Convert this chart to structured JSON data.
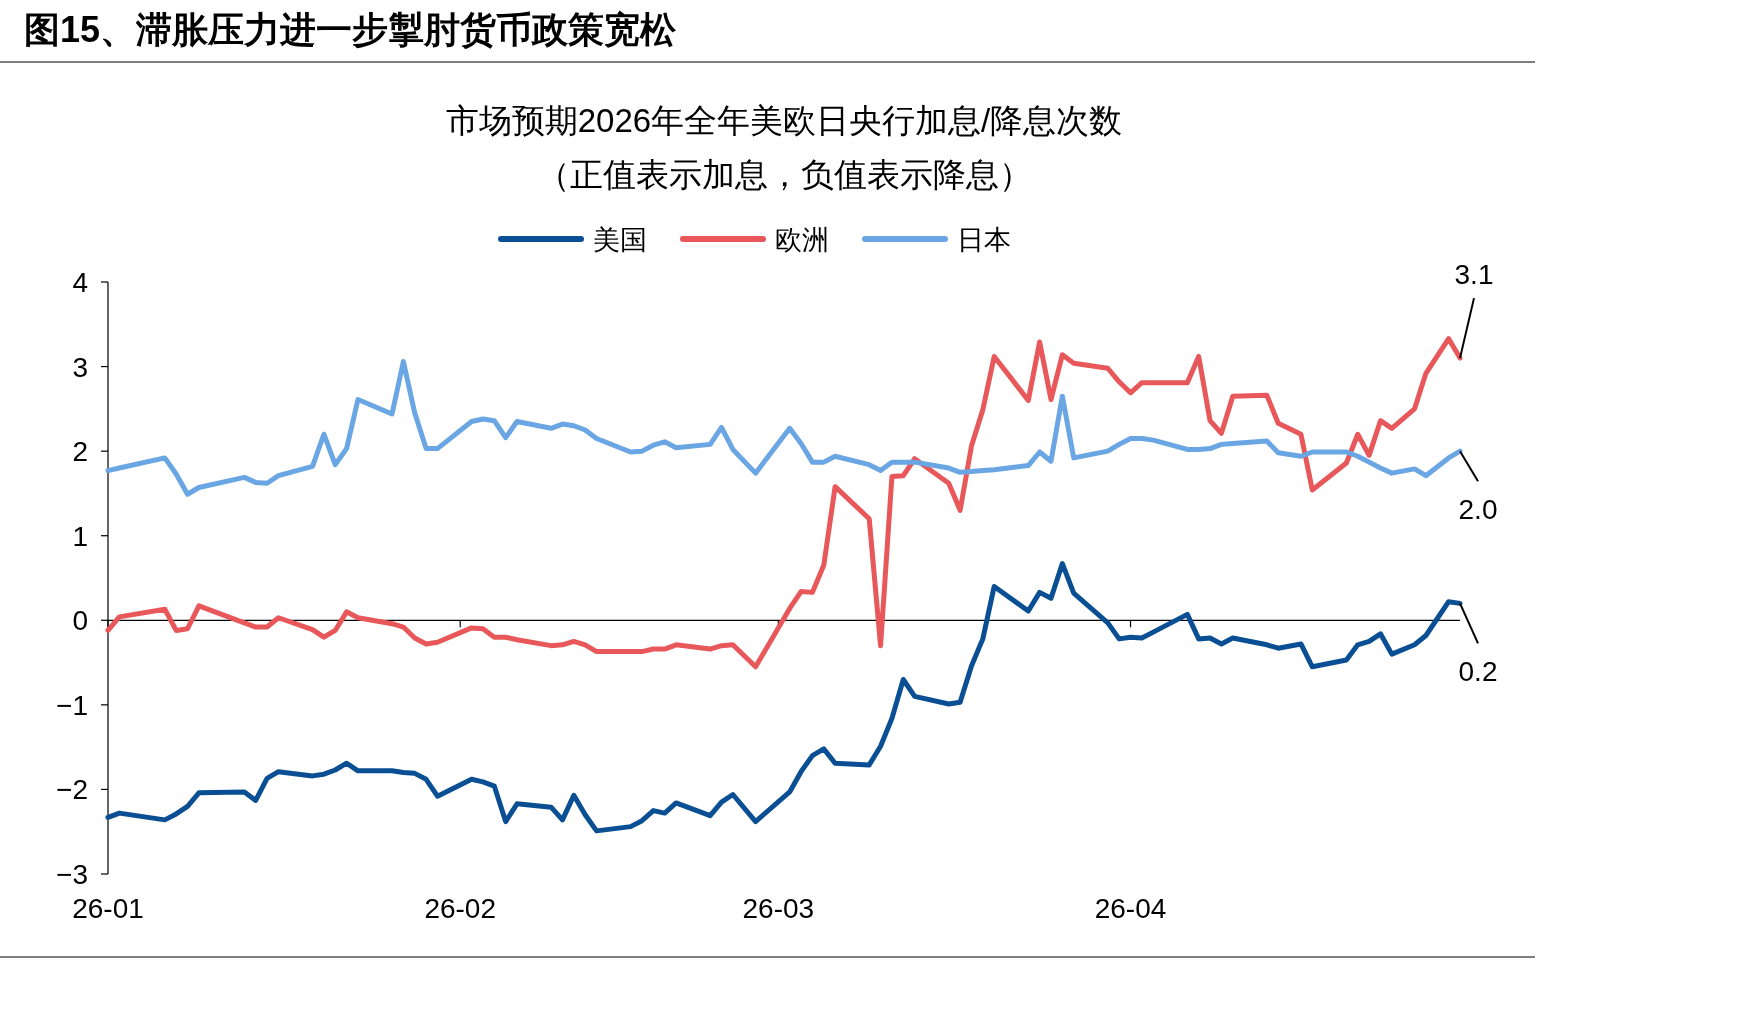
{
  "chart_data": {
    "type": "line",
    "title": "图15、滞胀压力进一步掣肘货币政策宽松",
    "subtitle": "市场预期2026年全年美欧日央行加息/降息次数",
    "annotations": [
      "（正值表示加息，负值表示降息）",
      {
        "text": "3.1",
        "x": "2026-04-30",
        "y": 3.1
      },
      {
        "text": "2.0",
        "x": "2026-04-30",
        "y": 2.0
      },
      {
        "text": "0.2",
        "x": "2026-04-30",
        "y": 0.2
      }
    ],
    "x": [
      "2026-01-01",
      "2026-01-02",
      "2026-01-06",
      "2026-01-07",
      "2026-01-08",
      "2026-01-09",
      "2026-01-13",
      "2026-01-14",
      "2026-01-15",
      "2026-01-16",
      "2026-01-19",
      "2026-01-20",
      "2026-01-21",
      "2026-01-22",
      "2026-01-23",
      "2026-01-26",
      "2026-01-27",
      "2026-01-28",
      "2026-01-29",
      "2026-01-30",
      "2026-02-02",
      "2026-02-03",
      "2026-02-04",
      "2026-02-05",
      "2026-02-06",
      "2026-02-09",
      "2026-02-10",
      "2026-02-11",
      "2026-02-12",
      "2026-02-13",
      "2026-02-16",
      "2026-02-17",
      "2026-02-18",
      "2026-02-19",
      "2026-02-20",
      "2026-02-23",
      "2026-02-24",
      "2026-02-25",
      "2026-02-27",
      "2026-03-02",
      "2026-03-03",
      "2026-03-04",
      "2026-03-05",
      "2026-03-06",
      "2026-03-09",
      "2026-03-10",
      "2026-03-11",
      "2026-03-12",
      "2026-03-13",
      "2026-03-16",
      "2026-03-17",
      "2026-03-18",
      "2026-03-19",
      "2026-03-20",
      "2026-03-23",
      "2026-03-24",
      "2026-03-25",
      "2026-03-26",
      "2026-03-27",
      "2026-03-30",
      "2026-03-31",
      "2026-04-01",
      "2026-04-02",
      "2026-04-03",
      "2026-04-06",
      "2026-04-07",
      "2026-04-08",
      "2026-04-09",
      "2026-04-10",
      "2026-04-13",
      "2026-04-14",
      "2026-04-16",
      "2026-04-17",
      "2026-04-20",
      "2026-04-21",
      "2026-04-22",
      "2026-04-23",
      "2026-04-24",
      "2026-04-26",
      "2026-04-27",
      "2026-04-29",
      "2026-04-30"
    ],
    "series": [
      {
        "name": "美国",
        "color": "#0a4f94",
        "values": [
          -2.33,
          -2.28,
          -2.36,
          -2.29,
          -2.2,
          -2.04,
          -2.03,
          -2.13,
          -1.87,
          -1.79,
          -1.84,
          -1.82,
          -1.77,
          -1.69,
          -1.78,
          -1.78,
          -1.8,
          -1.81,
          -1.88,
          -2.08,
          -1.88,
          -1.91,
          -1.96,
          -2.38,
          -2.17,
          -2.21,
          -2.36,
          -2.07,
          -2.3,
          -2.49,
          -2.44,
          -2.37,
          -2.25,
          -2.28,
          -2.16,
          -2.31,
          -2.15,
          -2.06,
          -2.38,
          -2.03,
          -1.79,
          -1.6,
          -1.52,
          -1.69,
          -1.71,
          -1.49,
          -1.16,
          -0.7,
          -0.9,
          -0.99,
          -0.97,
          -0.54,
          -0.22,
          0.4,
          0.11,
          0.33,
          0.26,
          0.67,
          0.32,
          -0.03,
          -0.22,
          -0.2,
          -0.21,
          -0.14,
          0.07,
          -0.22,
          -0.21,
          -0.28,
          -0.21,
          -0.29,
          -0.33,
          -0.28,
          -0.55,
          -0.47,
          -0.29,
          -0.25,
          -0.16,
          -0.4,
          -0.29,
          -0.18,
          0.22,
          0.2
        ]
      },
      {
        "name": "欧洲",
        "color": "#e8585a",
        "values": [
          -0.12,
          0.04,
          0.13,
          -0.12,
          -0.1,
          0.17,
          -0.03,
          -0.08,
          -0.08,
          0.03,
          -0.11,
          -0.2,
          -0.12,
          0.1,
          0.03,
          -0.04,
          -0.08,
          -0.21,
          -0.28,
          -0.26,
          -0.09,
          -0.1,
          -0.2,
          -0.2,
          -0.23,
          -0.3,
          -0.29,
          -0.25,
          -0.29,
          -0.37,
          -0.37,
          -0.37,
          -0.34,
          -0.34,
          -0.29,
          -0.34,
          -0.3,
          -0.29,
          -0.55,
          0.14,
          0.34,
          0.33,
          0.65,
          1.58,
          1.2,
          -0.3,
          1.7,
          1.71,
          1.91,
          1.62,
          1.3,
          2.06,
          2.49,
          3.12,
          2.6,
          3.29,
          2.61,
          3.14,
          3.04,
          2.98,
          2.82,
          2.69,
          2.81,
          2.81,
          2.81,
          3.12,
          2.36,
          2.21,
          2.65,
          2.66,
          2.33,
          2.2,
          1.54,
          1.86,
          2.2,
          1.95,
          2.36,
          2.27,
          2.5,
          2.92,
          3.33,
          3.1
        ]
      },
      {
        "name": "日本",
        "color": "#6aa6e3",
        "values": [
          1.77,
          1.8,
          1.92,
          1.73,
          1.49,
          1.57,
          1.69,
          1.63,
          1.62,
          1.71,
          1.82,
          2.2,
          1.84,
          2.03,
          2.61,
          2.44,
          3.06,
          2.45,
          2.03,
          2.03,
          2.35,
          2.38,
          2.36,
          2.16,
          2.35,
          2.27,
          2.32,
          2.3,
          2.25,
          2.15,
          1.99,
          2.0,
          2.07,
          2.11,
          2.04,
          2.08,
          2.28,
          2.02,
          1.74,
          2.27,
          2.09,
          1.87,
          1.87,
          1.94,
          1.84,
          1.77,
          1.87,
          1.87,
          1.87,
          1.8,
          1.75,
          1.76,
          1.77,
          1.78,
          1.83,
          1.99,
          1.88,
          2.65,
          1.92,
          2.0,
          2.08,
          2.15,
          2.15,
          2.13,
          2.02,
          2.02,
          2.03,
          2.08,
          2.09,
          2.12,
          1.98,
          1.94,
          1.99,
          1.99,
          1.94,
          1.87,
          1.8,
          1.74,
          1.79,
          1.71,
          1.92,
          2.0
        ]
      }
    ],
    "xlim": [
      "2026-01-01",
      "2026-04-30"
    ],
    "xticks": [
      {
        "value": "2026-01-01",
        "label": "26-01"
      },
      {
        "value": "2026-02-01",
        "label": "26-02"
      },
      {
        "value": "2026-03-01",
        "label": "26-03"
      },
      {
        "value": "2026-04-01",
        "label": "26-04"
      }
    ],
    "ylim": [
      -3,
      4
    ],
    "yticks": [
      {
        "value": -3,
        "label": "−3"
      },
      {
        "value": -2,
        "label": "−2"
      },
      {
        "value": -1,
        "label": "−1"
      },
      0,
      1,
      2,
      3,
      4
    ],
    "legend": "top"
  }
}
